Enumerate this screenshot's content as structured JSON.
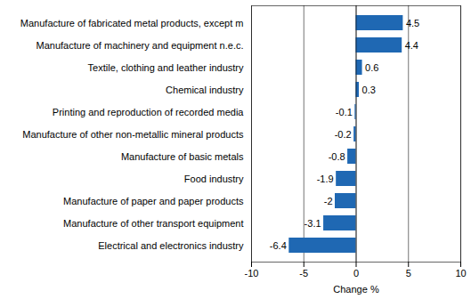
{
  "chart_data": {
    "type": "bar",
    "orientation": "horizontal",
    "categories": [
      "Manufacture of fabricated metal products, except m",
      "Manufacture of machinery and equipment n.e.c.",
      "Textile, clothing and leather industry",
      "Chemical industry",
      "Printing and reproduction of recorded media",
      "Manufacture of other non-metallic mineral products",
      "Manufacture of basic metals",
      "Food industry",
      "Manufacture of paper and paper products",
      "Manufacture of other transport equipment",
      "Electrical and electronics industry"
    ],
    "values": [
      4.5,
      4.4,
      0.6,
      0.3,
      -0.1,
      -0.2,
      -0.8,
      -1.9,
      -2,
      -3.1,
      -6.4
    ],
    "color": "#1f68b3",
    "x_label": "Change %",
    "xlim": [
      -10,
      10
    ],
    "xticks": [
      -10,
      -5,
      0,
      5,
      10
    ],
    "grid": true,
    "data_labels": true
  }
}
